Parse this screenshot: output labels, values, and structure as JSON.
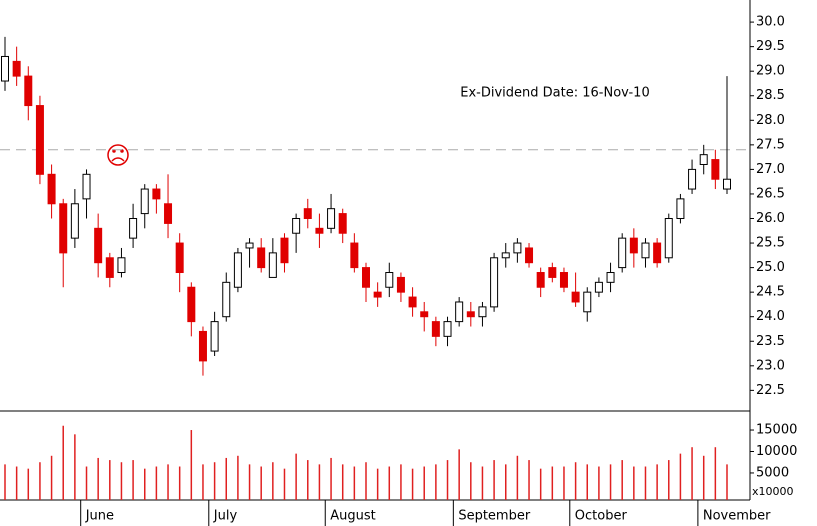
{
  "chart_data": {
    "type": "candlestick",
    "annotation": "Ex-Dividend Date: 16-Nov-10",
    "reference_line": 27.4,
    "up_color": "#000000",
    "down_color": "#e00000",
    "annotation_color": "#d42020",
    "categories": [
      null,
      null,
      null,
      null,
      null,
      null,
      null,
      "June",
      null,
      null,
      null,
      null,
      null,
      null,
      null,
      null,
      null,
      null,
      "July",
      null,
      null,
      null,
      null,
      null,
      null,
      null,
      null,
      null,
      "August",
      null,
      null,
      null,
      null,
      null,
      null,
      null,
      null,
      null,
      null,
      "September",
      null,
      null,
      null,
      null,
      null,
      null,
      null,
      null,
      null,
      "October",
      null,
      null,
      null,
      null,
      null,
      null,
      null,
      null,
      null,
      null,
      "November",
      null,
      null
    ],
    "open": [
      28.8,
      29.2,
      28.9,
      28.3,
      26.9,
      26.3,
      25.6,
      26.4,
      25.8,
      25.2,
      24.9,
      25.6,
      26.1,
      26.6,
      26.3,
      25.5,
      24.6,
      23.7,
      23.3,
      24.0,
      24.6,
      25.4,
      25.4,
      24.8,
      25.6,
      25.7,
      26.2,
      25.8,
      25.8,
      26.1,
      25.5,
      25.0,
      24.5,
      24.6,
      24.8,
      24.4,
      24.1,
      23.9,
      23.6,
      23.9,
      24.1,
      24.0,
      24.2,
      25.2,
      25.3,
      25.4,
      24.9,
      25.0,
      24.9,
      24.5,
      24.1,
      24.5,
      24.7,
      25.0,
      25.6,
      25.2,
      25.5,
      25.2,
      26.0,
      26.6,
      27.1,
      27.2,
      26.6
    ],
    "high": [
      29.7,
      29.5,
      29.1,
      28.5,
      27.1,
      26.4,
      26.6,
      27.0,
      26.1,
      25.3,
      25.4,
      26.3,
      26.7,
      26.7,
      26.9,
      25.7,
      24.7,
      23.8,
      24.1,
      24.9,
      25.4,
      25.6,
      25.6,
      25.6,
      25.7,
      26.1,
      26.4,
      26.1,
      26.5,
      26.2,
      25.7,
      25.1,
      24.7,
      25.1,
      24.9,
      24.6,
      24.3,
      24.0,
      24.0,
      24.4,
      24.3,
      24.3,
      25.3,
      25.5,
      25.6,
      25.5,
      25.0,
      25.1,
      25.0,
      24.9,
      24.6,
      24.8,
      25.1,
      25.7,
      25.8,
      25.6,
      25.6,
      26.1,
      26.5,
      27.2,
      27.5,
      27.4,
      28.9
    ],
    "low": [
      28.6,
      28.7,
      28.0,
      26.7,
      26.0,
      24.6,
      25.4,
      26.0,
      24.8,
      24.6,
      24.8,
      25.4,
      25.8,
      26.1,
      25.6,
      24.5,
      23.6,
      22.8,
      23.2,
      23.9,
      24.5,
      25.0,
      24.9,
      24.8,
      24.9,
      25.3,
      25.8,
      25.4,
      25.7,
      25.5,
      24.9,
      24.3,
      24.2,
      24.4,
      24.3,
      24.0,
      23.7,
      23.4,
      23.4,
      23.8,
      23.8,
      23.8,
      24.1,
      25.0,
      25.1,
      25.0,
      24.4,
      24.7,
      24.5,
      24.2,
      23.9,
      24.4,
      24.5,
      24.9,
      25.0,
      25.0,
      25.0,
      25.1,
      25.9,
      26.5,
      26.9,
      26.6,
      26.5
    ],
    "close": [
      29.3,
      28.9,
      28.3,
      26.9,
      26.3,
      25.3,
      26.3,
      26.9,
      25.1,
      24.8,
      25.2,
      26.0,
      26.6,
      26.4,
      25.9,
      24.9,
      23.9,
      23.1,
      23.9,
      24.7,
      25.3,
      25.5,
      25.0,
      25.3,
      25.1,
      26.0,
      26.0,
      25.7,
      26.2,
      25.7,
      25.0,
      24.6,
      24.4,
      24.9,
      24.5,
      24.2,
      24.0,
      23.6,
      23.9,
      24.3,
      24.0,
      24.2,
      25.2,
      25.3,
      25.5,
      25.1,
      24.6,
      24.8,
      24.6,
      24.3,
      24.5,
      24.7,
      24.9,
      25.6,
      25.3,
      25.5,
      25.1,
      26.0,
      26.4,
      27.0,
      27.3,
      26.8,
      26.8
    ],
    "ylim": [
      22.1,
      30.45
    ],
    "yticks": [
      {
        "value": 22.5,
        "label": "22.5"
      },
      {
        "value": 23,
        "label": "23.0"
      },
      {
        "value": 23.5,
        "label": "23.5"
      },
      {
        "value": 24,
        "label": "24.0"
      },
      {
        "value": 24.5,
        "label": "24.5"
      },
      {
        "value": 25,
        "label": "25.0"
      },
      {
        "value": 25.5,
        "label": "25.5"
      },
      {
        "value": 26,
        "label": "26.0"
      },
      {
        "value": 26.5,
        "label": "26.5"
      },
      {
        "value": 27,
        "label": "27.0"
      },
      {
        "value": 27.5,
        "label": "27.5"
      },
      {
        "value": 28,
        "label": "28.0"
      },
      {
        "value": 28.5,
        "label": "28.5"
      },
      {
        "value": 29,
        "label": "29.0"
      },
      {
        "value": 29.5,
        "label": "29.5"
      },
      {
        "value": 30,
        "label": "30.0"
      }
    ],
    "volume": {
      "unit_label": "x10000",
      "color": "#e02020",
      "values": [
        7000,
        6500,
        6000,
        7500,
        9000,
        16000,
        14000,
        6500,
        8500,
        8000,
        7500,
        8000,
        6000,
        6500,
        7000,
        6500,
        15000,
        7000,
        7500,
        8500,
        9000,
        7000,
        6500,
        7500,
        6000,
        9500,
        8000,
        7000,
        8500,
        7000,
        6500,
        7500,
        6000,
        6500,
        7000,
        6000,
        6500,
        7000,
        8000,
        10500,
        7500,
        6500,
        8000,
        7000,
        9000,
        8000,
        6000,
        6500,
        6500,
        7500,
        7000,
        6500,
        7000,
        8000,
        6500,
        6500,
        7000,
        8000,
        9500,
        11000,
        9000,
        11000,
        7000
      ],
      "ylim": [
        -1300,
        19200
      ],
      "yticks": [
        5000,
        10000,
        15000
      ]
    }
  }
}
